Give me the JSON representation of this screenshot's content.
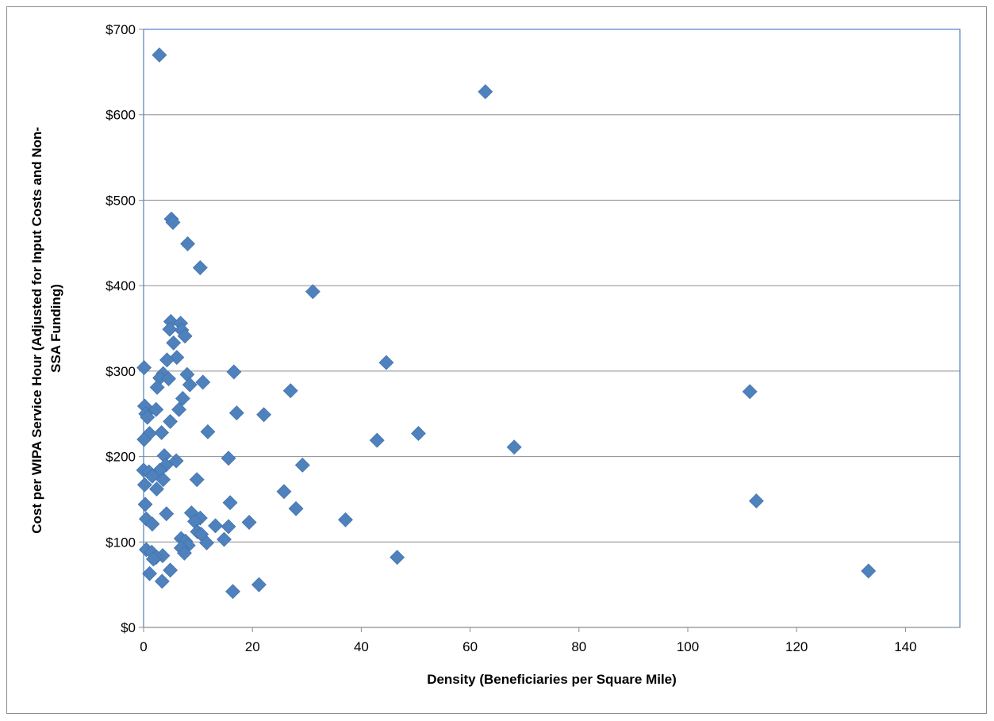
{
  "chart_data": {
    "type": "scatter",
    "title": "",
    "xlabel": "Density (Beneficiaries per Square Mile)",
    "ylabel_lines": [
      "Cost per WIPA Service Hour (Adjusted for Input Costs and Non-",
      "SSA Funding)"
    ],
    "xlim": [
      0,
      150
    ],
    "ylim": [
      0,
      700
    ],
    "x_ticks": [
      0,
      20,
      40,
      60,
      80,
      100,
      120,
      140
    ],
    "y_ticks": [
      0,
      100,
      200,
      300,
      400,
      500,
      600,
      700
    ],
    "y_tick_labels": [
      "$0",
      "$100",
      "$200",
      "$300",
      "$400",
      "$500",
      "$600",
      "$700"
    ],
    "grid": "horizontal",
    "marker": "diamond",
    "color": "#4f81bd",
    "series": [
      {
        "points": [
          [
            2.9,
            670
          ],
          [
            62.8,
            627
          ],
          [
            5.1,
            478
          ],
          [
            5.4,
            474
          ],
          [
            8.1,
            449
          ],
          [
            10.4,
            421
          ],
          [
            31.1,
            393
          ],
          [
            5.0,
            358
          ],
          [
            6.8,
            356
          ],
          [
            4.8,
            349
          ],
          [
            7.0,
            348
          ],
          [
            7.6,
            341
          ],
          [
            5.5,
            333
          ],
          [
            6.1,
            316
          ],
          [
            4.3,
            313
          ],
          [
            44.6,
            310
          ],
          [
            0.1,
            304
          ],
          [
            16.6,
            299
          ],
          [
            3.6,
            297
          ],
          [
            8.0,
            296
          ],
          [
            3.0,
            292
          ],
          [
            4.6,
            291
          ],
          [
            10.9,
            287
          ],
          [
            8.5,
            284
          ],
          [
            2.5,
            281
          ],
          [
            27.0,
            277
          ],
          [
            111.4,
            276
          ],
          [
            7.2,
            268
          ],
          [
            0.2,
            259
          ],
          [
            6.5,
            255
          ],
          [
            2.3,
            255
          ],
          [
            17.1,
            251
          ],
          [
            0.4,
            250
          ],
          [
            22.1,
            249
          ],
          [
            0.7,
            246
          ],
          [
            4.9,
            241
          ],
          [
            11.8,
            229
          ],
          [
            3.3,
            228
          ],
          [
            1.1,
            227
          ],
          [
            50.5,
            227
          ],
          [
            0.1,
            220
          ],
          [
            42.9,
            219
          ],
          [
            68.1,
            211
          ],
          [
            3.8,
            201
          ],
          [
            15.6,
            198
          ],
          [
            6.0,
            195
          ],
          [
            4.1,
            190
          ],
          [
            29.2,
            190
          ],
          [
            0.0,
            184
          ],
          [
            3.0,
            184
          ],
          [
            1.0,
            182
          ],
          [
            1.6,
            177
          ],
          [
            3.6,
            173
          ],
          [
            9.8,
            173
          ],
          [
            0.2,
            167
          ],
          [
            2.4,
            162
          ],
          [
            25.8,
            159
          ],
          [
            112.6,
            148
          ],
          [
            15.9,
            146
          ],
          [
            0.3,
            144
          ],
          [
            28.0,
            139
          ],
          [
            8.8,
            134
          ],
          [
            4.2,
            133
          ],
          [
            10.4,
            128
          ],
          [
            0.5,
            127
          ],
          [
            9.4,
            124
          ],
          [
            37.1,
            126
          ],
          [
            19.4,
            123
          ],
          [
            1.6,
            121
          ],
          [
            13.2,
            119
          ],
          [
            15.6,
            118
          ],
          [
            9.9,
            112
          ],
          [
            10.6,
            109
          ],
          [
            6.9,
            104
          ],
          [
            14.8,
            103
          ],
          [
            7.7,
            101
          ],
          [
            11.6,
            99
          ],
          [
            8.2,
            96
          ],
          [
            6.9,
            93
          ],
          [
            0.5,
            91
          ],
          [
            1.5,
            88
          ],
          [
            7.5,
            87
          ],
          [
            3.5,
            84
          ],
          [
            2.3,
            82
          ],
          [
            1.8,
            80
          ],
          [
            46.6,
            82
          ],
          [
            133.2,
            66
          ],
          [
            4.9,
            67
          ],
          [
            1.1,
            63
          ],
          [
            3.4,
            54
          ],
          [
            21.2,
            50
          ],
          [
            16.4,
            42
          ]
        ]
      }
    ]
  }
}
